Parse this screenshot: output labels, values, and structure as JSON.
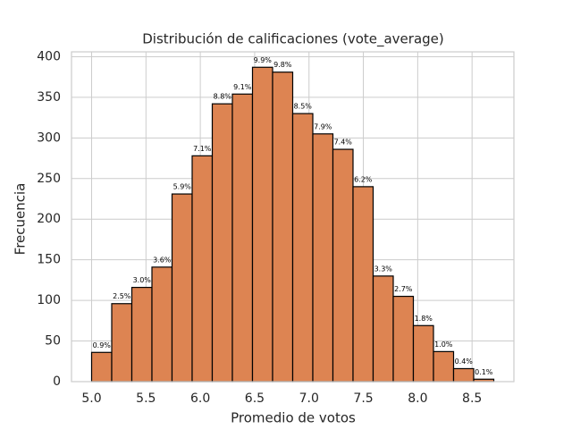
{
  "chart_data": {
    "type": "histogram",
    "title": "Distribución de calificaciones (vote_average)",
    "xlabel": "Promedio de votos",
    "ylabel": "Frecuencia",
    "bins": [
      5.0,
      5.185,
      5.37,
      5.555,
      5.74,
      5.925,
      6.11,
      6.295,
      6.48,
      6.665,
      6.85,
      7.035,
      7.22,
      7.405,
      7.59,
      7.775,
      7.96,
      8.145,
      8.33,
      8.515,
      8.7
    ],
    "values": [
      36,
      96,
      116,
      141,
      231,
      278,
      342,
      354,
      387,
      381,
      330,
      305,
      286,
      240,
      130,
      105,
      69,
      37,
      16,
      3
    ],
    "annotations": [
      "0.9%",
      "2.5%",
      "3.0%",
      "3.6%",
      "5.9%",
      "7.1%",
      "8.8%",
      "9.1%",
      "9.9%",
      "9.8%",
      "8.5%",
      "7.9%",
      "7.4%",
      "6.2%",
      "3.3%",
      "2.7%",
      "1.8%",
      "1.0%",
      "0.4%",
      "0.1%"
    ],
    "color": "#dd8452",
    "edgecolor": "#000000",
    "xlim": [
      4.815,
      8.885
    ],
    "xticks": [
      {
        "value": 5,
        "label": "5.0"
      },
      {
        "value": 5.5,
        "label": "5.5"
      },
      {
        "value": 6,
        "label": "6.0"
      },
      {
        "value": 6.5,
        "label": "6.5"
      },
      {
        "value": 7,
        "label": "7.0"
      },
      {
        "value": 7.5,
        "label": "7.5"
      },
      {
        "value": 8,
        "label": "8.0"
      },
      {
        "value": 8.5,
        "label": "8.5"
      }
    ],
    "ylim": [
      0,
      406
    ],
    "yticks": [
      0,
      50,
      100,
      150,
      200,
      250,
      300,
      350,
      400
    ],
    "grid": true
  }
}
